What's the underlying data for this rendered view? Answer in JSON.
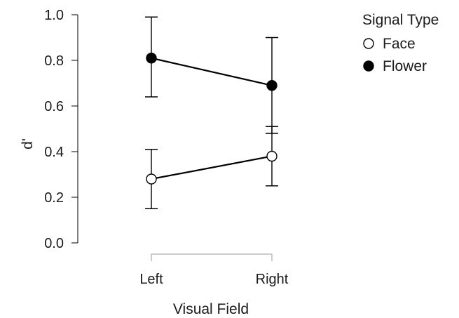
{
  "chart_data": {
    "type": "line",
    "xlabel": "Visual Field",
    "ylabel": "d'",
    "categories": [
      "Left",
      "Right"
    ],
    "ylim": [
      0.0,
      1.0
    ],
    "yticks": [
      "0.0",
      "0.2",
      "0.4",
      "0.6",
      "0.8",
      "1.0"
    ],
    "grid": false,
    "legend": {
      "title": "Signal Type",
      "placement": "top-right"
    },
    "series": [
      {
        "name": "Face",
        "marker": "open-circle",
        "color": "#000000",
        "values": [
          0.28,
          0.38
        ],
        "err_low": [
          0.15,
          0.25
        ],
        "err_high": [
          0.41,
          0.51
        ]
      },
      {
        "name": "Flower",
        "marker": "filled-circle",
        "color": "#000000",
        "values": [
          0.81,
          0.69
        ],
        "err_low": [
          0.64,
          0.48
        ],
        "err_high": [
          0.99,
          0.9
        ]
      }
    ]
  }
}
